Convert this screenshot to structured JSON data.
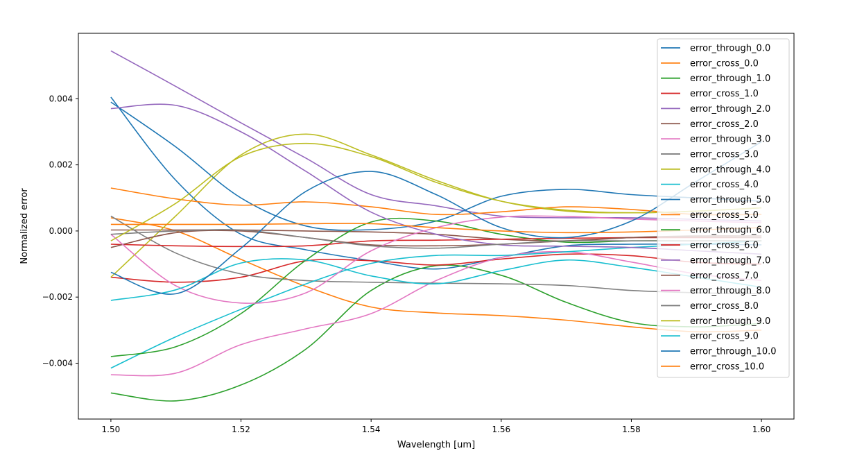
{
  "chart_data": {
    "type": "line",
    "title": "",
    "xlabel": "Wavelength [um]",
    "ylabel": "Normalized error",
    "xlim": [
      1.495,
      1.605
    ],
    "ylim": [
      -0.00569,
      0.00598
    ],
    "grid": false,
    "legend_placement": "top-right",
    "x": [
      1.5,
      1.51,
      1.52,
      1.53,
      1.54,
      1.55,
      1.56,
      1.57,
      1.58,
      1.59,
      1.6
    ],
    "xticks": [
      1.5,
      1.52,
      1.54,
      1.56,
      1.58,
      1.6
    ],
    "xtick_labels": [
      "1.50",
      "1.52",
      "1.54",
      "1.56",
      "1.58",
      "1.60"
    ],
    "yticks": [
      -0.004,
      -0.002,
      0.0,
      0.002,
      0.004
    ],
    "ytick_labels": [
      "−0.004",
      "−0.002",
      "0.000",
      "0.002",
      "0.004"
    ],
    "series": [
      {
        "name": "error_through_0.0",
        "color": "#1f77b4",
        "values": [
          0.00405,
          0.00153,
          -0.0001,
          -0.00057,
          -0.0009,
          -0.00115,
          -0.0008,
          -0.00045,
          -0.0004,
          -0.0004,
          -0.00042
        ]
      },
      {
        "name": "error_cross_0.0",
        "color": "#ff7f0e",
        "values": [
          0.0004,
          0.0,
          -0.00086,
          -0.00168,
          -0.0023,
          -0.00248,
          -0.00256,
          -0.0027,
          -0.0029,
          -0.00305,
          -0.003
        ]
      },
      {
        "name": "error_through_1.0",
        "color": "#2ca02c",
        "values": [
          -0.0049,
          -0.00514,
          -0.00466,
          -0.00357,
          -0.0018,
          -0.00105,
          -0.00134,
          -0.00216,
          -0.00277,
          -0.0029,
          -0.0028
        ]
      },
      {
        "name": "error_cross_1.0",
        "color": "#d62728",
        "values": [
          -0.0014,
          -0.00155,
          -0.0014,
          -0.0009,
          -0.0009,
          -0.00103,
          -0.00085,
          -0.0007,
          -0.00075,
          -0.00095,
          -0.001
        ]
      },
      {
        "name": "error_through_2.0",
        "color": "#9467bd",
        "values": [
          0.00545,
          0.00437,
          0.00327,
          0.0022,
          0.0011,
          0.00076,
          0.00045,
          0.0004,
          0.0004,
          0.00035,
          0.0003
        ]
      },
      {
        "name": "error_cross_2.0",
        "color": "#8c564b",
        "values": [
          3e-05,
          3e-05,
          3e-05,
          0.0,
          -3e-05,
          -0.0001,
          -0.00025,
          -0.0003,
          -0.0002,
          -0.00015,
          -0.00015
        ]
      },
      {
        "name": "error_through_3.0",
        "color": "#e377c2",
        "values": [
          -0.00435,
          -0.0043,
          -0.00344,
          -0.00296,
          -0.0025,
          -0.0015,
          -0.0008,
          -0.00063,
          -0.00094,
          -0.0013,
          -0.0015
        ]
      },
      {
        "name": "error_cross_3.0",
        "color": "#7f7f7f",
        "values": [
          0.00045,
          -0.00067,
          -0.0013,
          -0.0015,
          -0.00155,
          -0.00158,
          -0.0016,
          -0.00165,
          -0.0018,
          -0.00187,
          -0.0019
        ]
      },
      {
        "name": "error_through_4.0",
        "color": "#bcbd22",
        "values": [
          -0.0014,
          0.00046,
          0.0023,
          0.00293,
          0.0023,
          0.00153,
          0.0009,
          0.0006,
          0.00055,
          0.0006,
          0.0007
        ]
      },
      {
        "name": "error_cross_4.0",
        "color": "#17becf",
        "values": [
          -0.00415,
          -0.0032,
          -0.00237,
          -0.0016,
          -0.00098,
          -0.00074,
          -0.00074,
          -0.00063,
          -0.0005,
          -0.0004,
          -0.0003
        ]
      },
      {
        "name": "error_through_5.0",
        "color": "#1f77b4",
        "values": [
          0.0039,
          0.00254,
          0.001,
          0.00015,
          4e-05,
          0.0003,
          0.00105,
          0.00126,
          0.0011,
          0.001,
          0.0009
        ]
      },
      {
        "name": "error_cross_5.0",
        "color": "#ff7f0e",
        "values": [
          0.0013,
          0.00097,
          0.00078,
          0.00088,
          0.00073,
          0.0005,
          0.00058,
          0.00073,
          0.00065,
          0.0005,
          0.0005
        ]
      },
      {
        "name": "error_through_6.0",
        "color": "#2ca02c",
        "values": [
          -0.0038,
          -0.0035,
          -0.0025,
          -0.00088,
          0.00027,
          0.0003,
          -0.0001,
          -0.00034,
          -0.0003,
          -0.0003,
          -0.0003
        ]
      },
      {
        "name": "error_cross_6.0",
        "color": "#d62728",
        "values": [
          -0.0004,
          -0.00045,
          -0.00047,
          -0.00045,
          -0.0003,
          -0.00028,
          -0.00025,
          -0.00022,
          -0.0002,
          -0.0002,
          -0.0002
        ]
      },
      {
        "name": "error_through_7.0",
        "color": "#9467bd",
        "values": [
          0.0037,
          0.0038,
          0.003,
          0.0018,
          0.00057,
          -0.0001,
          -0.00042,
          -0.00046,
          -0.0005,
          -0.0006,
          -0.0007
        ]
      },
      {
        "name": "error_cross_7.0",
        "color": "#8c564b",
        "values": [
          -0.0005,
          -5e-05,
          0.0,
          -0.0002,
          -0.00042,
          -0.00045,
          -0.0004,
          -0.0003,
          -0.0002,
          -0.00018,
          -0.0002
        ]
      },
      {
        "name": "error_through_8.0",
        "color": "#e377c2",
        "values": [
          -0.0001,
          -0.00166,
          -0.00218,
          -0.00187,
          -0.0006,
          0.0001,
          0.00042,
          0.00044,
          0.00036,
          0.0003,
          0.00025
        ]
      },
      {
        "name": "error_cross_8.0",
        "color": "#7f7f7f",
        "values": [
          -0.0001,
          0.0,
          3e-05,
          -0.0002,
          -0.00045,
          -0.00052,
          -0.0004,
          -0.0003,
          -0.0003,
          -0.0003,
          -0.0003
        ]
      },
      {
        "name": "error_through_9.0",
        "color": "#bcbd22",
        "values": [
          -0.0003,
          0.00084,
          0.00225,
          0.00265,
          0.00225,
          0.00147,
          0.0009,
          0.00063,
          0.00055,
          0.0006,
          0.0007
        ]
      },
      {
        "name": "error_cross_9.0",
        "color": "#17becf",
        "values": [
          -0.0021,
          -0.00178,
          -0.00097,
          -0.00088,
          -0.00136,
          -0.0016,
          -0.0012,
          -0.00088,
          -0.0011,
          -0.0014,
          -0.0017
        ]
      },
      {
        "name": "error_through_10.0",
        "color": "#1f77b4",
        "values": [
          -0.00125,
          -0.0019,
          -0.00052,
          0.0012,
          0.0018,
          0.0011,
          0.0001,
          -0.0002,
          0.0003,
          0.0015,
          0.0027
        ]
      },
      {
        "name": "error_cross_10.0",
        "color": "#ff7f0e",
        "values": [
          0.0002,
          0.0002,
          0.0002,
          0.00022,
          0.00022,
          0.0001,
          0.0,
          -5e-05,
          -3e-05,
          3e-05,
          0.0001
        ]
      }
    ]
  }
}
